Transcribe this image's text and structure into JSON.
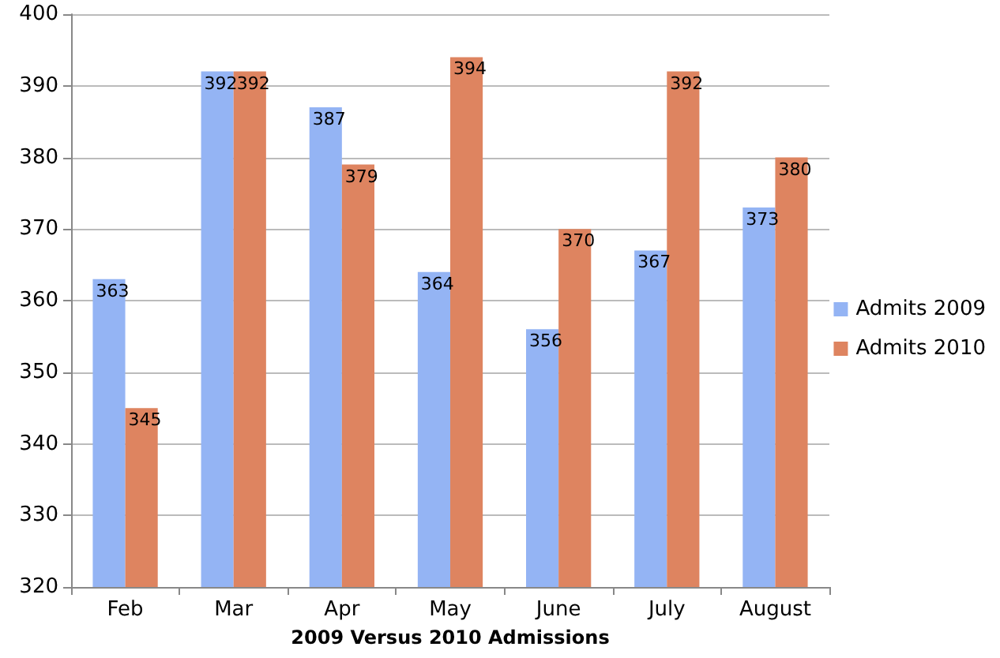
{
  "chart_data": {
    "type": "bar",
    "xlabel": "2009 Versus 2010 Admissions",
    "categories": [
      "Feb",
      "Mar",
      "Apr",
      "May",
      "June",
      "July",
      "August"
    ],
    "series": [
      {
        "name": "Admits 2009",
        "color": "#94b4f4",
        "values": [
          363,
          392,
          387,
          364,
          356,
          367,
          373
        ]
      },
      {
        "name": "Admits 2010",
        "color": "#de8460",
        "values": [
          345,
          392,
          379,
          394,
          370,
          392,
          380
        ]
      }
    ],
    "ylim": [
      320,
      400
    ],
    "yticks": [
      320,
      330,
      340,
      350,
      360,
      370,
      380,
      390,
      400
    ],
    "grid": "y",
    "legend": "right",
    "data_labels": true
  }
}
